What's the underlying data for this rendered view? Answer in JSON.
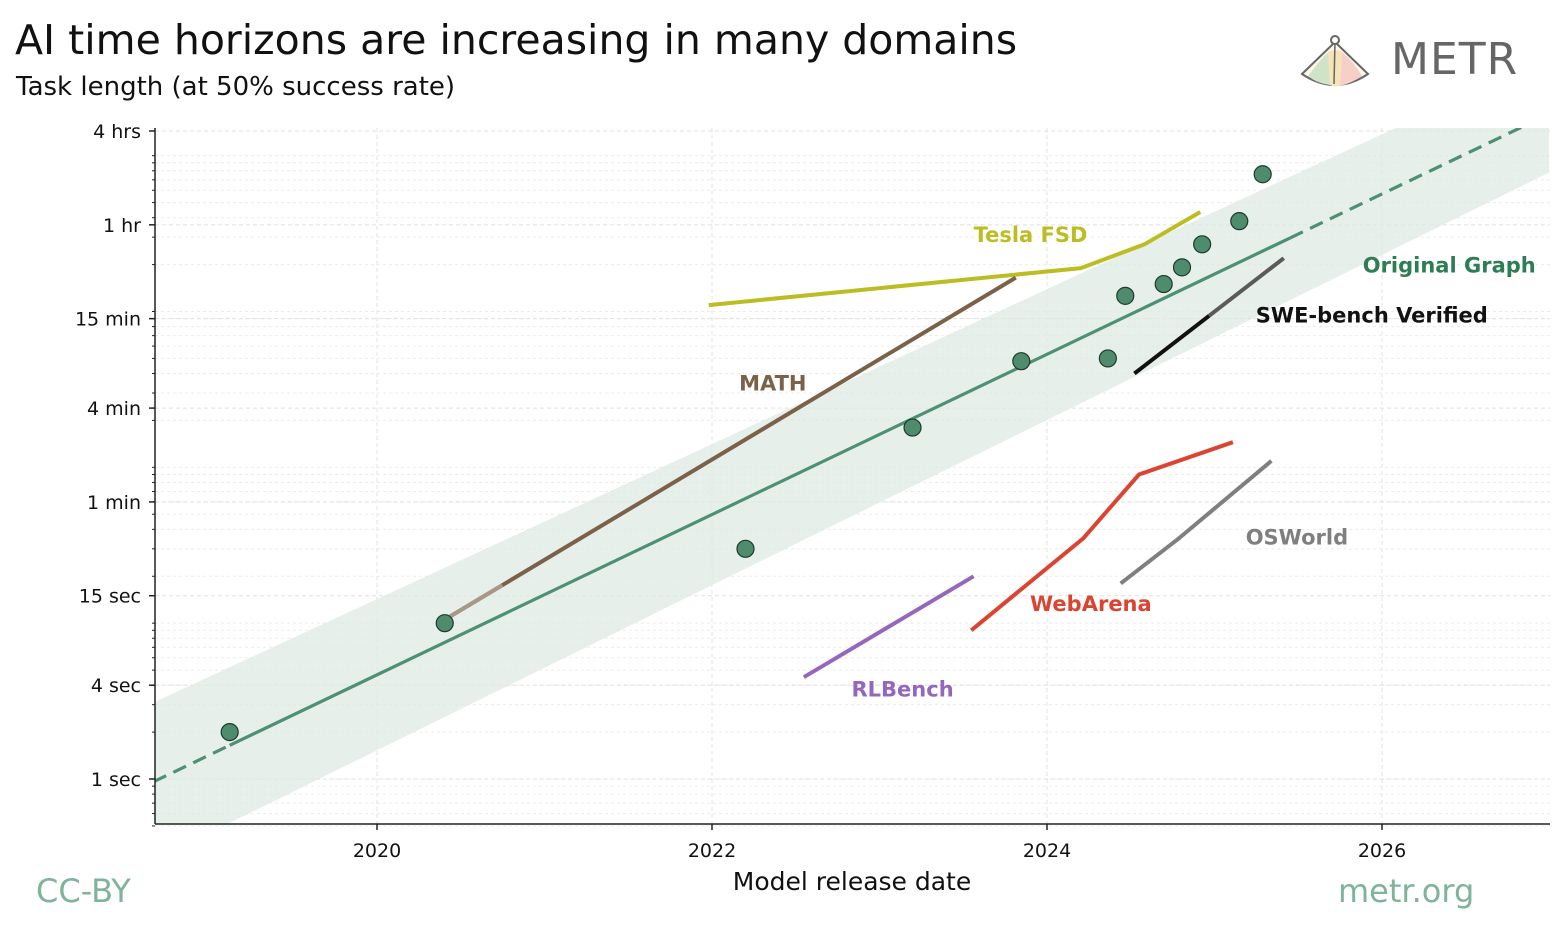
{
  "header": {
    "title": "AI time horizons are increasing in many domains",
    "subtitle": "Task length (at 50% success rate)"
  },
  "brand": {
    "name": "METR",
    "icon": "metr-logo-icon"
  },
  "footer": {
    "license": "CC-BY",
    "site": "metr.org"
  },
  "colors": {
    "trend": "#4d9073",
    "band": "#dfeae3",
    "point_fill": "#4f8b6d",
    "footer": "#7fb39c"
  },
  "chart_data": {
    "type": "line",
    "title": "AI time horizons are increasing in many domains",
    "subtitle": "Task length (at 50% success rate)",
    "xlabel": "Model release date",
    "ylabel": "",
    "y_scale": "log",
    "x_range": [
      "2018-09-01",
      "2026-12-31"
    ],
    "y_range_seconds": [
      0.5,
      14400
    ],
    "x_ticks": [
      {
        "date": "2020-01-01",
        "label": "2020"
      },
      {
        "date": "2022-01-01",
        "label": "2022"
      },
      {
        "date": "2024-01-01",
        "label": "2024"
      },
      {
        "date": "2026-01-01",
        "label": "2026"
      }
    ],
    "y_ticks": [
      {
        "seconds": 1,
        "label": "1 sec"
      },
      {
        "seconds": 4,
        "label": "4 sec"
      },
      {
        "seconds": 15,
        "label": "15 sec"
      },
      {
        "seconds": 60,
        "label": "1 min"
      },
      {
        "seconds": 240,
        "label": "4 min"
      },
      {
        "seconds": 900,
        "label": "15 min"
      },
      {
        "seconds": 3600,
        "label": "1 hr"
      },
      {
        "seconds": 14400,
        "label": "4 hrs"
      }
    ],
    "grid": true,
    "legend": "none",
    "series": [
      {
        "name": "Original Graph",
        "color": "#2e7d55",
        "kind": "points",
        "x": [
          "2019-02-14",
          "2020-05-28",
          "2022-03-15",
          "2023-03-14",
          "2023-11-06",
          "2024-05-13",
          "2024-06-20",
          "2024-09-12",
          "2024-10-22",
          "2024-12-05",
          "2025-02-24",
          "2025-04-16"
        ],
        "y_seconds": [
          2,
          10,
          30,
          180,
          480,
          500,
          1260,
          1500,
          1920,
          2700,
          3800,
          7600
        ]
      },
      {
        "name": "Original Graph trend",
        "color": "#4d9073",
        "kind": "trend",
        "x": [
          "2018-09-01",
          "2025-06-15",
          "2026-12-31"
        ],
        "y_seconds": [
          0.96,
          3500,
          18500
        ],
        "projected_after": "2025-06-15"
      },
      {
        "name": "Original Graph band",
        "kind": "band",
        "x": [
          "2018-09-01",
          "2026-12-31"
        ],
        "y_low_seconds": [
          0.3,
          7800
        ],
        "y_high_seconds": [
          3.1,
          43000
        ]
      },
      {
        "name": "Tesla FSD",
        "color": "#bcbd22",
        "x": [
          "2021-12-25",
          "2024-03-15",
          "2024-08-01",
          "2024-12-01"
        ],
        "y_seconds": [
          1100,
          1900,
          2700,
          4350
        ]
      },
      {
        "name": "MATH",
        "color": "#7b6148",
        "x": [
          "2020-05-15",
          "2023-10-25"
        ],
        "y_seconds": [
          10,
          1650
        ]
      },
      {
        "name": "SWE-bench Verified",
        "color": "#111111",
        "x": [
          "2024-07-10",
          "2025-06-01"
        ],
        "y_seconds": [
          400,
          2200
        ]
      },
      {
        "name": "WebArena",
        "color": "#db4431",
        "x": [
          "2023-07-20",
          "2024-03-20",
          "2024-07-20",
          "2025-02-10"
        ],
        "y_seconds": [
          9,
          35,
          90,
          145
        ]
      },
      {
        "name": "OSWorld",
        "color": "#7f7f7f",
        "x": [
          "2024-06-10",
          "2024-10-15",
          "2025-05-05"
        ],
        "y_seconds": [
          18,
          35,
          110
        ]
      },
      {
        "name": "RLBench",
        "color": "#9467bd",
        "x": [
          "2022-07-20",
          "2023-07-25"
        ],
        "y_seconds": [
          4.5,
          20
        ]
      }
    ],
    "annotations": [
      {
        "text": "Tesla FSD",
        "color": "#bcbd22",
        "x": "2023-07-25",
        "y_seconds": 3150
      },
      {
        "text": "MATH",
        "color": "#7b6148",
        "x": "2022-03-01",
        "y_seconds": 350
      },
      {
        "text": "Original Graph",
        "color": "#2e7d55",
        "x": "2025-11-20",
        "y_seconds": 2000
      },
      {
        "text": "SWE-bench Verified",
        "color": "#111111",
        "x": "2025-04-01",
        "y_seconds": 960
      },
      {
        "text": "OSWorld",
        "color": "#7f7f7f",
        "x": "2025-03-10",
        "y_seconds": 36
      },
      {
        "text": "WebArena",
        "color": "#db4431",
        "x": "2023-11-25",
        "y_seconds": 13.5
      },
      {
        "text": "RLBench",
        "color": "#9467bd",
        "x": "2022-11-01",
        "y_seconds": 3.8
      }
    ]
  }
}
